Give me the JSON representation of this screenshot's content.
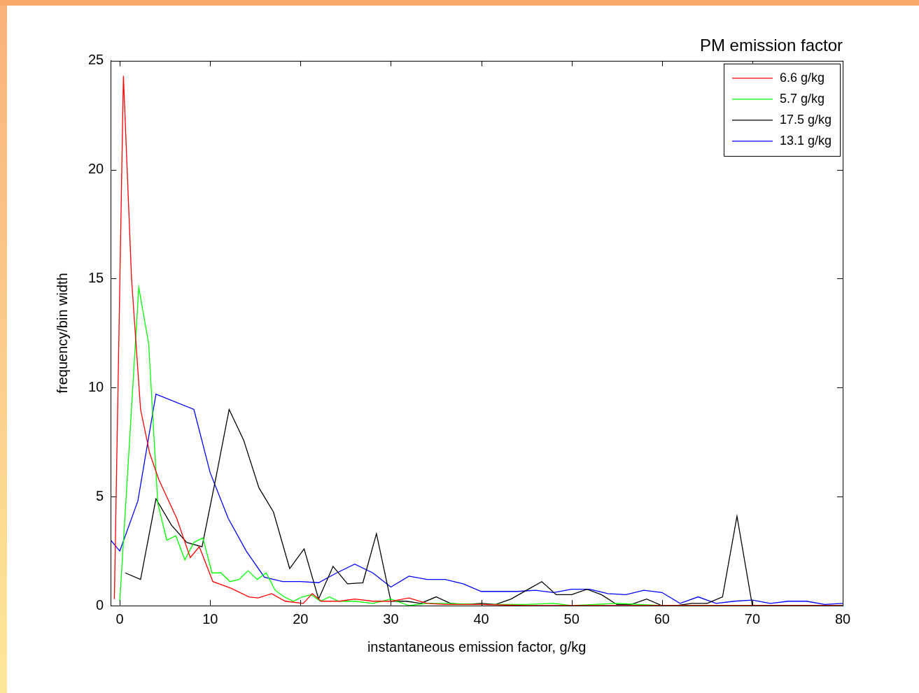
{
  "chart_data": {
    "type": "line",
    "title": "PM emission factor",
    "x_label": "instantaneous emission factor, g/kg",
    "y_label": "frequency/bin width",
    "xlim": [
      -1,
      80
    ],
    "xticks": [
      0,
      10,
      20,
      30,
      40,
      50,
      60,
      70,
      80
    ],
    "ylim": [
      0,
      25
    ],
    "yticks": [
      0,
      5,
      10,
      15,
      20,
      25
    ],
    "grid": false,
    "legend": "upper right",
    "series": [
      {
        "name": "6.6 g/kg",
        "color": "#ff0000",
        "x": [
          -0.6,
          0.4,
          1.3,
          2.3,
          3.3,
          4.3,
          6.3,
          7.8,
          8.8,
          10.3,
          12.3,
          14.3,
          15.3,
          16.8,
          18.3,
          20.3,
          21.3,
          22.3,
          24.3,
          26,
          28,
          30,
          32,
          34,
          36,
          40,
          45,
          50,
          60,
          70,
          80
        ],
        "values": [
          0.3,
          24.3,
          15,
          9,
          7,
          5.8,
          4,
          2.2,
          2.7,
          1.1,
          0.8,
          0.4,
          0.35,
          0.55,
          0.2,
          0.1,
          0.55,
          0.2,
          0.2,
          0.3,
          0.2,
          0.2,
          0.35,
          0.1,
          0.05,
          0.05,
          0,
          0,
          0,
          0,
          0
        ]
      },
      {
        "name": "5.7 g/kg",
        "color": "#00ff00",
        "x": [
          0,
          1,
          2.1,
          3.2,
          4.2,
          5.2,
          6.2,
          7.2,
          8.2,
          9.2,
          10.2,
          11.2,
          12.2,
          13.2,
          14.2,
          15.2,
          16.2,
          17.2,
          18.2,
          19.2,
          20.2,
          21.2,
          22.2,
          23.2,
          24.2,
          26,
          28,
          30,
          32,
          34,
          36,
          40,
          45,
          48,
          50,
          55,
          60,
          70,
          80
        ],
        "values": [
          0.2,
          7,
          14.6,
          12,
          4.7,
          3,
          3.2,
          2.1,
          2.9,
          3.1,
          1.5,
          1.5,
          1.1,
          1.2,
          1.6,
          1.2,
          1.5,
          0.7,
          0.4,
          0.2,
          0.4,
          0.5,
          0.2,
          0.4,
          0.2,
          0.2,
          0.1,
          0.3,
          0,
          0.1,
          0.1,
          0.05,
          0.05,
          0.1,
          0,
          0.1,
          0,
          0,
          0
        ]
      },
      {
        "name": "17.5 g/kg",
        "color": "#000000",
        "x": [
          0.6,
          2.3,
          4,
          5.7,
          7.4,
          9.1,
          10.7,
          12.1,
          13.7,
          15.4,
          17,
          18.8,
          20.4,
          22,
          23.6,
          25.2,
          26.9,
          28.4,
          30,
          31.7,
          33.3,
          35,
          36.6,
          38.3,
          40,
          41.6,
          43.3,
          45,
          46.7,
          48.3,
          50,
          51.7,
          53.3,
          55,
          56.6,
          58.3,
          60,
          61.6,
          63.3,
          65,
          66.7,
          68.3,
          70,
          72,
          80
        ],
        "values": [
          1.5,
          1.2,
          4.9,
          3.7,
          2.9,
          2.7,
          6,
          9,
          7.6,
          5.4,
          4.3,
          1.7,
          2.6,
          0.3,
          1.8,
          1.0,
          1.05,
          3.3,
          0.2,
          0.2,
          0.1,
          0.4,
          0.1,
          0.05,
          0.1,
          0.05,
          0.3,
          0.7,
          1.1,
          0.5,
          0.5,
          0.75,
          0.5,
          0.05,
          0.05,
          0.3,
          0,
          0,
          0.1,
          0.1,
          0.4,
          4.1,
          0,
          0,
          0
        ]
      },
      {
        "name": "13.1 g/kg",
        "color": "#0000ff",
        "x": [
          -1,
          0,
          2,
          4,
          8.2,
          10,
          12,
          14,
          16,
          18,
          20,
          22,
          24,
          26,
          28,
          30,
          32,
          34,
          36,
          38,
          40,
          42,
          44,
          46,
          48,
          50,
          52,
          54,
          56,
          58,
          60,
          62,
          64,
          66,
          68,
          70,
          72,
          74,
          76,
          78,
          80
        ],
        "values": [
          3,
          2.5,
          4.8,
          9.7,
          9,
          6.1,
          4,
          2.5,
          1.3,
          1.1,
          1.1,
          1.05,
          1.5,
          1.9,
          1.5,
          0.85,
          1.35,
          1.2,
          1.2,
          1.0,
          0.65,
          0.65,
          0.65,
          0.7,
          0.6,
          0.75,
          0.75,
          0.55,
          0.5,
          0.7,
          0.6,
          0.1,
          0.4,
          0.1,
          0.2,
          0.25,
          0.1,
          0.2,
          0.2,
          0.05,
          0.1
        ]
      }
    ]
  }
}
